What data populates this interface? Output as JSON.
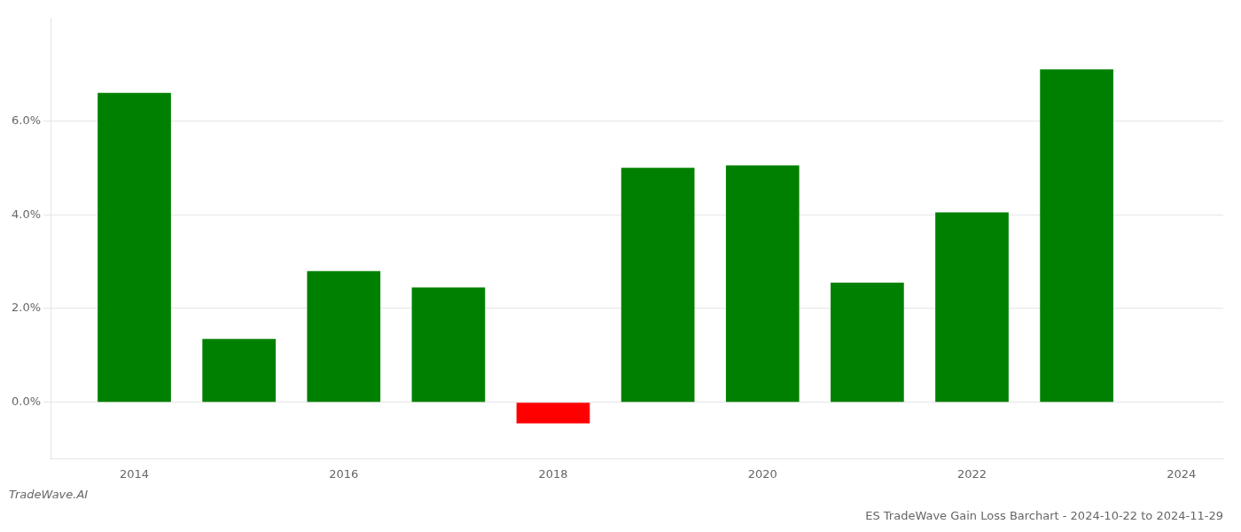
{
  "chart_data": {
    "type": "bar",
    "title": "ES TradeWave Gain Loss Barchart - 2024-10-22 to 2024-11-29",
    "annotations": [
      "TradeWave.AI"
    ],
    "x": [
      2014,
      2015,
      2016,
      2017,
      2018,
      2019,
      2020,
      2021,
      2022,
      2023
    ],
    "values": [
      0.066,
      0.0135,
      0.028,
      0.0245,
      -0.0045,
      0.05,
      0.0505,
      0.0255,
      0.0405,
      0.071
    ],
    "colors": [
      "#008000",
      "#008000",
      "#008000",
      "#008000",
      "#ff0000",
      "#008000",
      "#008000",
      "#008000",
      "#008000",
      "#008000"
    ],
    "xlim": [
      2013.2,
      2024.4
    ],
    "xticks": [
      2014,
      2016,
      2018,
      2020,
      2022,
      2024
    ],
    "ylim": [
      -0.012,
      0.082
    ],
    "yticks": [
      {
        "value": 0.0,
        "label": "0.0%"
      },
      {
        "value": 0.02,
        "label": "2.0%"
      },
      {
        "value": 0.04,
        "label": "4.0%"
      },
      {
        "value": 0.06,
        "label": "6.0%"
      }
    ],
    "grid": "y"
  }
}
